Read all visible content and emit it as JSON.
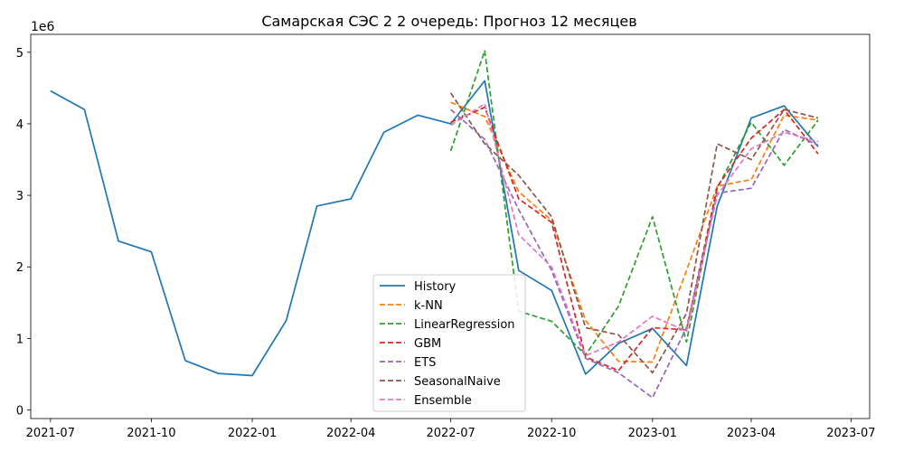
{
  "chart_data": {
    "type": "line",
    "title": "Самарская СЭС  2 2 очередь: Прогноз 12 месяцев",
    "xlabel": "",
    "ylabel": "",
    "y_scale_label": "1e6",
    "ylim": [
      -0.12,
      5.25
    ],
    "xlim": [
      "2021-06-13",
      "2023-07-18"
    ],
    "x_ticks": [
      "2021-07-01",
      "2021-10-01",
      "2022-01-01",
      "2022-04-01",
      "2022-07-01",
      "2022-10-01",
      "2023-01-01",
      "2023-04-01",
      "2023-07-01"
    ],
    "x_tick_labels": [
      "2021-07",
      "2021-10",
      "2022-01",
      "2022-04",
      "2022-07",
      "2022-10",
      "2023-01",
      "2023-04",
      "2023-07"
    ],
    "y_ticks": [
      0,
      1,
      2,
      3,
      4,
      5
    ],
    "y_tick_labels": [
      "0",
      "1",
      "2",
      "3",
      "4",
      "5"
    ],
    "legend_position": "lower-center",
    "forecast_dates": [
      "2022-07-01",
      "2022-08-01",
      "2022-09-01",
      "2022-10-01",
      "2022-11-01",
      "2022-12-01",
      "2023-01-01",
      "2023-02-01",
      "2023-03-01",
      "2023-04-01",
      "2023-05-01",
      "2023-06-01"
    ],
    "series": [
      {
        "name": "History",
        "color": "#1f77b4",
        "dash": "solid",
        "x": [
          "2021-07-01",
          "2021-08-01",
          "2021-09-01",
          "2021-10-01",
          "2021-11-01",
          "2021-12-01",
          "2022-01-01",
          "2022-02-01",
          "2022-03-01",
          "2022-04-01",
          "2022-05-01",
          "2022-06-01",
          "2022-07-01",
          "2022-08-01",
          "2022-09-01",
          "2022-10-01",
          "2022-11-01",
          "2022-12-01",
          "2023-01-01",
          "2023-02-01",
          "2023-03-01",
          "2023-04-01",
          "2023-05-01",
          "2023-06-01"
        ],
        "values": [
          4.46,
          4.2,
          2.36,
          2.21,
          0.69,
          0.51,
          0.48,
          1.25,
          2.85,
          2.95,
          3.88,
          4.12,
          4.0,
          4.6,
          1.95,
          1.67,
          0.5,
          0.93,
          1.14,
          0.62,
          2.85,
          4.08,
          4.25,
          3.68
        ]
      },
      {
        "name": "k-NN",
        "color": "#ff7f0e",
        "dash": "dashed",
        "values": [
          4.3,
          4.1,
          3.05,
          2.65,
          1.25,
          0.68,
          0.67,
          1.95,
          3.13,
          3.22,
          4.12,
          4.05
        ]
      },
      {
        "name": "LinearRegression",
        "color": "#2ca02c",
        "dash": "dashed",
        "values": [
          3.62,
          5.02,
          1.38,
          1.24,
          0.77,
          1.45,
          2.7,
          0.95,
          3.1,
          4.02,
          3.42,
          4.05
        ]
      },
      {
        "name": "GBM",
        "color": "#d62728",
        "dash": "dashed",
        "values": [
          4.02,
          4.23,
          2.95,
          2.62,
          0.74,
          0.55,
          1.15,
          1.12,
          3.12,
          3.8,
          4.2,
          3.58
        ]
      },
      {
        "name": "ETS",
        "color": "#9467bd",
        "dash": "dashed",
        "values": [
          4.2,
          3.78,
          2.8,
          1.95,
          0.72,
          0.52,
          0.17,
          1.15,
          3.03,
          3.1,
          3.92,
          3.7
        ]
      },
      {
        "name": "SeasonalNaive",
        "color": "#8c564b",
        "dash": "dashed",
        "values": [
          4.43,
          3.72,
          3.28,
          2.7,
          1.15,
          1.05,
          0.52,
          1.35,
          3.72,
          3.5,
          4.2,
          4.08
        ]
      },
      {
        "name": "Ensemble",
        "color": "#e377c2",
        "dash": "dashed",
        "values": [
          3.98,
          4.28,
          2.45,
          2.0,
          0.76,
          0.95,
          1.31,
          1.1,
          3.0,
          3.65,
          3.88,
          3.75
        ]
      }
    ]
  }
}
